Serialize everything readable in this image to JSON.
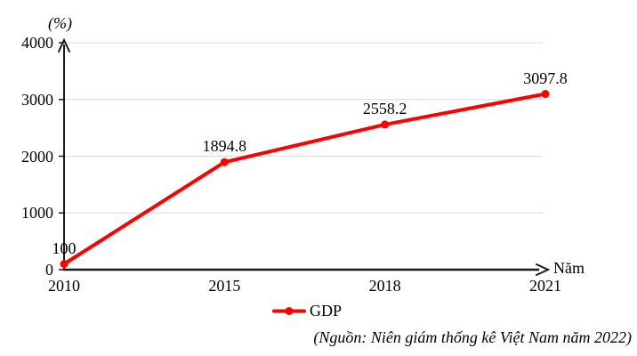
{
  "chart": {
    "y_axis_title": "(%)",
    "x_axis_title": "Năm",
    "legend_label": "GDP",
    "source_note": "(Nguồn: Niên giám thống kê Việt Nam năm 2022)"
  },
  "chart_data": {
    "type": "line",
    "categories": [
      "2010",
      "2015",
      "2018",
      "2021"
    ],
    "series": [
      {
        "name": "GDP",
        "values": [
          100,
          1894.8,
          2558.2,
          3097.8
        ],
        "color": "#ff0000"
      }
    ],
    "data_labels": [
      "100",
      "1894.8",
      "2558.2",
      "3097.8"
    ],
    "title": "",
    "xlabel": "Năm",
    "ylabel": "(%)",
    "ylim": [
      0,
      4000
    ],
    "yticks": [
      0,
      1000,
      2000,
      3000,
      4000
    ],
    "grid": true,
    "legend_position": "bottom",
    "marker": "circle",
    "axis_color": "#1a1a1a",
    "gridline_color": "#d9d9d9"
  }
}
